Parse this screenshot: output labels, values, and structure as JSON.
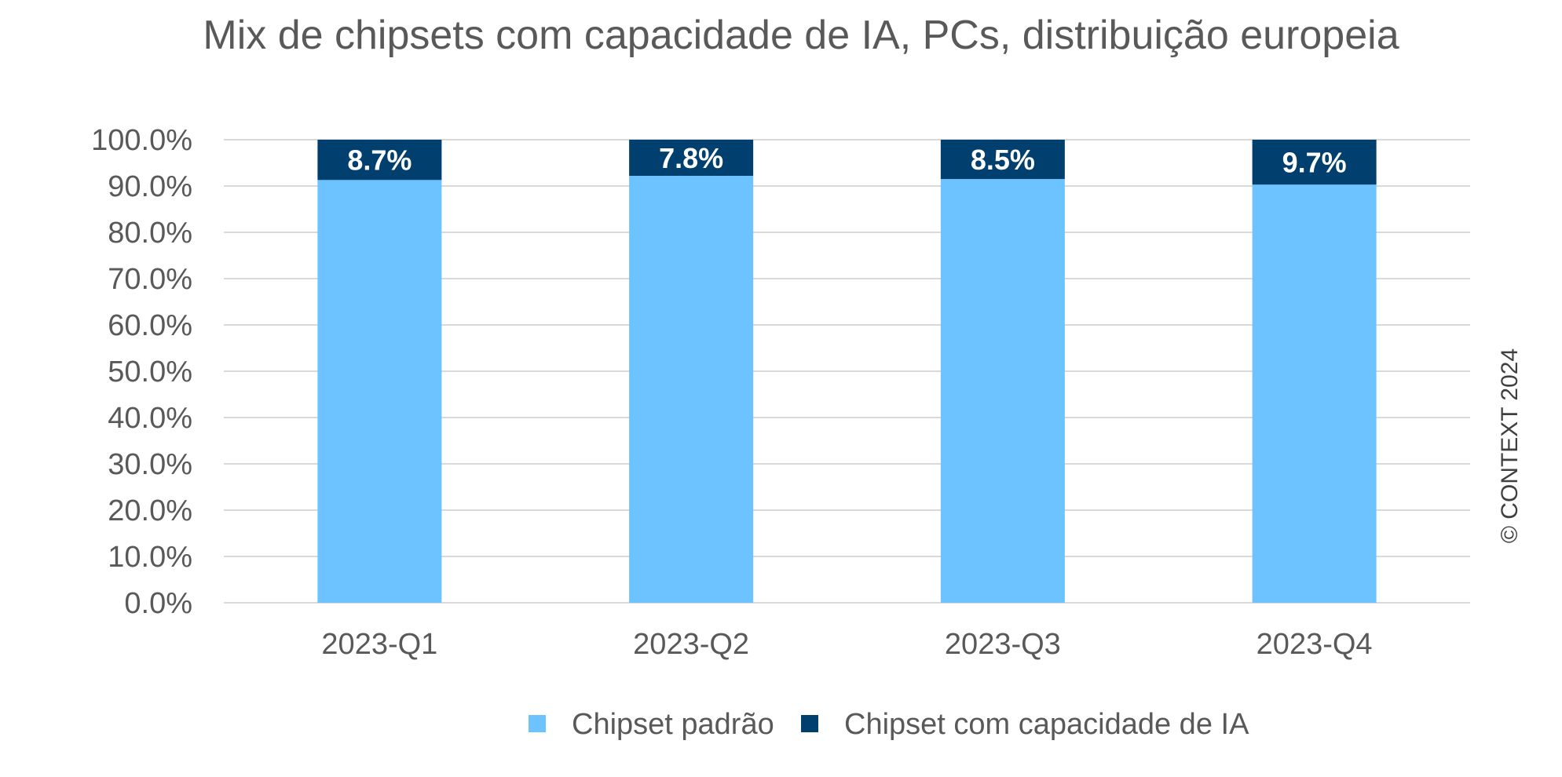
{
  "chart_data": {
    "type": "bar",
    "stacked": true,
    "title": "Mix de chipsets com capacidade de IA, PCs, distribuição europeia",
    "categories": [
      "2023-Q1",
      "2023-Q2",
      "2023-Q3",
      "2023-Q4"
    ],
    "series": [
      {
        "name": "Chipset padrão",
        "values": [
          91.3,
          92.2,
          91.5,
          90.3
        ],
        "color": "#6CC3FF"
      },
      {
        "name": "Chipset com capacidade de IA",
        "values": [
          8.7,
          7.8,
          8.5,
          9.7
        ],
        "color": "#003F6E",
        "data_labels": [
          "8.7%",
          "7.8%",
          "8.5%",
          "9.7%"
        ]
      }
    ],
    "y_ticks": [
      "0.0%",
      "10.0%",
      "20.0%",
      "30.0%",
      "40.0%",
      "50.0%",
      "60.0%",
      "70.0%",
      "80.0%",
      "90.0%",
      "100.0%"
    ],
    "ylim": [
      0,
      100
    ],
    "grid": true,
    "grid_color": "#D9D9D9",
    "legend_position": "bottom",
    "xlabel": "",
    "ylabel": ""
  },
  "copyright": "© CONTEXT 2024",
  "colors": {
    "text": "#595959",
    "background": "#FFFFFF"
  }
}
